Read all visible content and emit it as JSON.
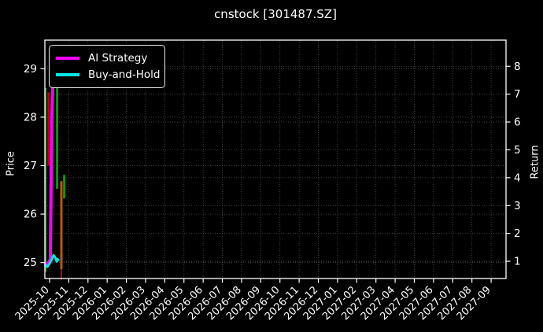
{
  "title": "cnstock [301487.SZ]",
  "axis_labels": {
    "left": "Price",
    "right": "Return"
  },
  "legend": {
    "items": [
      {
        "label": "AI Strategy",
        "color": "#FF00FF"
      },
      {
        "label": "Buy-and-Hold",
        "color": "#00E6E6"
      }
    ]
  },
  "chart_data": {
    "type": "candlestick+line",
    "title": "cnstock [301487.SZ]",
    "ylabel": "Price",
    "ylabel_right": "Return",
    "legend_position": "upper left",
    "grid": true,
    "x_tick_labels": [
      "2025-10",
      "2025-11",
      "2025-12",
      "2026-01",
      "2026-02",
      "2026-03",
      "2026-04",
      "2026-05",
      "2026-06",
      "2026-07",
      "2026-08",
      "2026-09",
      "2026-10",
      "2026-11",
      "2026-12",
      "2027-01",
      "2027-02",
      "2027-03",
      "2027-04",
      "2027-05",
      "2027-06",
      "2027-07",
      "2027-08",
      "2027-09"
    ],
    "x_ticks": {
      "first_frac": 0.0102,
      "step_frac": 0.04163,
      "count": 24
    },
    "price_axis": {
      "min": 24.67,
      "max": 29.59,
      "ticks": [
        25,
        26,
        27,
        28,
        29
      ]
    },
    "return_axis": {
      "min": 0.38,
      "max": 8.94,
      "ticks": [
        1,
        2,
        3,
        4,
        5,
        6,
        7,
        8
      ]
    },
    "candles": [
      {
        "xf": 0.0017,
        "high": 28.6,
        "low": 24.81,
        "color": "#00B400",
        "w": 2
      },
      {
        "xf": 0.0077,
        "high": 28.51,
        "low": 27.0,
        "color": "#C80000",
        "w": 2.5
      },
      {
        "xf": 0.0265,
        "high": 28.63,
        "low": 26.52,
        "color": "#00B400",
        "w": 2.5
      },
      {
        "xf": 0.0418,
        "high": 26.81,
        "low": 26.32,
        "color": "#00B400",
        "w": 2.5
      },
      {
        "xf": 0.0358,
        "high": 26.68,
        "low": 24.86,
        "color": "#BE5A00",
        "w": 3
      },
      {
        "xf": 0.0358,
        "high": 24.86,
        "low": 24.64,
        "color": "#C80000",
        "w": 2
      }
    ],
    "series": [
      {
        "name": "AI Strategy",
        "color": "#FF00FF",
        "width": 4,
        "points": [
          [
            0,
            24.99
          ],
          [
            0.0051,
            24.94
          ],
          [
            0.0085,
            25.01
          ],
          [
            0.0119,
            25.06
          ],
          [
            0.0133,
            26.36
          ],
          [
            0.015,
            27.98
          ],
          [
            0.0171,
            28.66
          ]
        ]
      },
      {
        "name": "Buy-and-Hold",
        "color": "#00E6E6",
        "width": 3,
        "points": [
          [
            0,
            24.96
          ],
          [
            0.0051,
            24.91
          ],
          [
            0.0102,
            24.98
          ],
          [
            0.0137,
            25.04
          ],
          [
            0.0188,
            25.15
          ],
          [
            0.0222,
            25.11
          ],
          [
            0.0256,
            25.02
          ],
          [
            0.0273,
            25.07
          ],
          [
            0.0307,
            25.04
          ]
        ]
      }
    ],
    "colors": {
      "background": "#000000",
      "text": "#FFFFFF",
      "grid": "#6E6E6E",
      "spine": "#FFFFFF"
    }
  }
}
